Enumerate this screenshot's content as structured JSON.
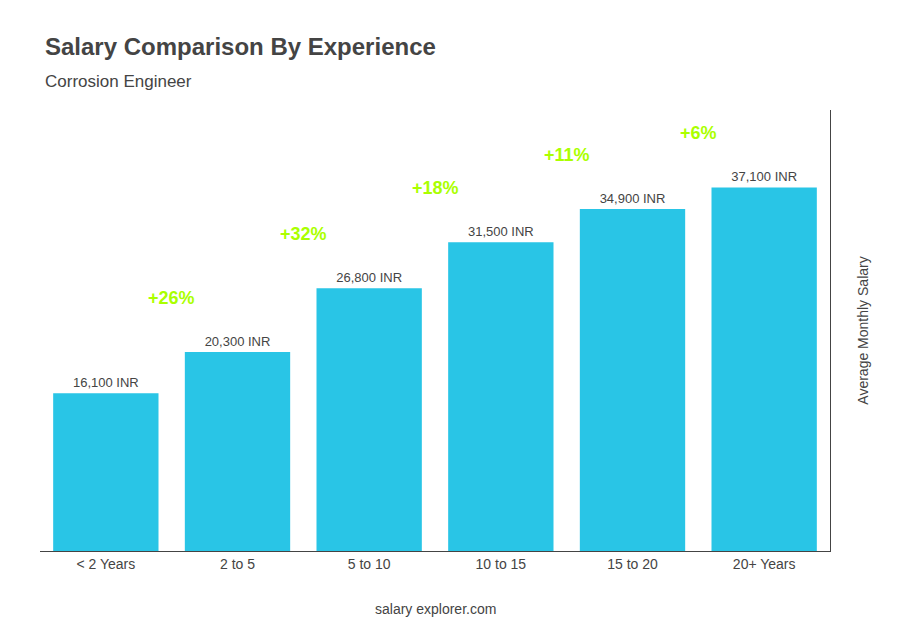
{
  "chart_data": {
    "type": "bar",
    "title": "Salary Comparison By Experience",
    "subtitle": "Corrosion Engineer",
    "ylabel": "Average Monthly Salary",
    "footer": "salary explorer.com",
    "categories": [
      "< 2 Years",
      "2 to 5",
      "5 to 10",
      "10 to 15",
      "15 to 20",
      "20+ Years"
    ],
    "values": [
      16100,
      20300,
      26800,
      31500,
      34900,
      37100
    ],
    "value_labels": [
      "16,100 INR",
      "20,300 INR",
      "26,800 INR",
      "31,500 INR",
      "34,900 INR",
      "37,100 INR"
    ],
    "data_labels": true,
    "color": "#29c5e6",
    "annotations": [
      {
        "text": "+26%",
        "color": "#aaff00"
      },
      {
        "text": "+32%",
        "color": "#aaff00"
      },
      {
        "text": "+18%",
        "color": "#aaff00"
      },
      {
        "text": "+11%",
        "color": "#aaff00"
      },
      {
        "text": "+6%",
        "color": "#aaff00"
      }
    ],
    "ylim": [
      0,
      45000
    ],
    "tick_labels": "x",
    "grid": false
  }
}
